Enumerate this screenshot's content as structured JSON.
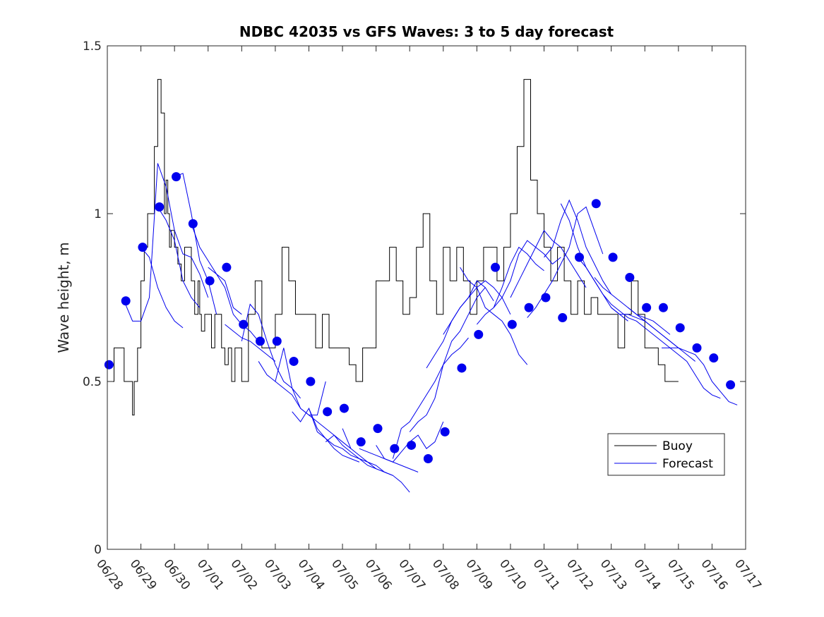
{
  "chart_data": {
    "type": "line",
    "title": "NDBC 42035 vs GFS Waves: 3 to 5 day forecast",
    "xlabel": "",
    "ylabel": "Wave height, m",
    "xlim": [
      "06/28",
      "07/17"
    ],
    "ylim": [
      0,
      1.5
    ],
    "yticks": [
      "0",
      "0.5",
      "1",
      "1.5"
    ],
    "xticks": [
      "06/28",
      "06/29",
      "06/30",
      "07/01",
      "07/02",
      "07/03",
      "07/04",
      "07/05",
      "07/06",
      "07/07",
      "07/08",
      "07/09",
      "07/10",
      "07/11",
      "07/12",
      "07/13",
      "07/14",
      "07/15",
      "07/16",
      "07/17"
    ],
    "grid": false,
    "legend_position": "lower-right",
    "colors": {
      "buoy": "#000000",
      "forecast": "#0000ee",
      "markers": "#0000ee"
    },
    "buoy": {
      "name": "Buoy",
      "days": [
        0,
        0.2,
        0.25,
        0.5,
        0.75,
        0.8,
        0.9,
        1.0,
        1.1,
        1.2,
        1.4,
        1.5,
        1.6,
        1.7,
        1.75,
        1.8,
        1.85,
        1.9,
        2.0,
        2.1,
        2.2,
        2.3,
        2.5,
        2.6,
        2.7,
        2.75,
        2.8,
        2.9,
        3.0,
        3.1,
        3.2,
        3.3,
        3.4,
        3.5,
        3.6,
        3.7,
        3.8,
        3.9,
        4.0,
        4.2,
        4.4,
        4.6,
        4.8,
        5.0,
        5.2,
        5.4,
        5.6,
        5.8,
        6.0,
        6.2,
        6.4,
        6.6,
        6.8,
        7.0,
        7.2,
        7.4,
        7.6,
        7.8,
        8.0,
        8.2,
        8.4,
        8.6,
        8.8,
        9.0,
        9.2,
        9.4,
        9.6,
        9.8,
        10.0,
        10.2,
        10.4,
        10.6,
        10.8,
        11.0,
        11.2,
        11.4,
        11.6,
        11.8,
        12.0,
        12.2,
        12.4,
        12.6,
        12.8,
        13.0,
        13.2,
        13.4,
        13.6,
        13.8,
        14.0,
        14.2,
        14.4,
        14.6,
        14.8,
        15.0,
        15.2,
        15.4,
        15.6,
        15.8,
        16.0,
        16.2,
        16.4,
        16.6,
        16.8,
        17.0
      ],
      "values": [
        0.5,
        0.6,
        0.6,
        0.5,
        0.4,
        0.5,
        0.6,
        0.8,
        0.9,
        1.0,
        1.2,
        1.4,
        1.3,
        1.0,
        1.1,
        1.0,
        0.9,
        0.95,
        0.9,
        0.85,
        0.8,
        0.9,
        0.8,
        0.7,
        0.8,
        0.7,
        0.65,
        0.7,
        0.7,
        0.6,
        0.7,
        0.7,
        0.6,
        0.55,
        0.6,
        0.5,
        0.6,
        0.6,
        0.5,
        0.7,
        0.8,
        0.6,
        0.6,
        0.7,
        0.9,
        0.8,
        0.7,
        0.7,
        0.7,
        0.6,
        0.7,
        0.6,
        0.6,
        0.6,
        0.55,
        0.5,
        0.6,
        0.6,
        0.8,
        0.8,
        0.9,
        0.8,
        0.7,
        0.75,
        0.9,
        1.0,
        0.8,
        0.7,
        0.9,
        0.8,
        0.9,
        0.8,
        0.7,
        0.8,
        0.9,
        0.9,
        0.8,
        0.9,
        1.0,
        1.2,
        1.4,
        1.1,
        1.0,
        0.9,
        0.8,
        0.9,
        0.8,
        0.7,
        0.8,
        0.7,
        0.75,
        0.7,
        0.7,
        0.7,
        0.6,
        0.7,
        0.8,
        0.7,
        0.6,
        0.6,
        0.55,
        0.5,
        0.5,
        0.5
      ],
      "note_days_from": "06/28"
    },
    "forecast_runs": [
      {
        "name": "Forecast",
        "start": 0.5,
        "values": [
          0.74,
          0.68,
          0.68,
          0.75,
          1.15,
          1.08,
          0.95,
          0.88,
          0.87,
          0.82,
          0.75
        ]
      },
      {
        "name": "",
        "start": 1.0,
        "values": [
          0.9,
          0.87,
          0.78,
          0.72,
          0.68,
          0.66
        ]
      },
      {
        "name": "",
        "start": 1.5,
        "values": [
          1.02,
          0.98,
          0.92,
          0.8,
          0.75,
          0.72
        ]
      },
      {
        "name": "",
        "start": 2.0,
        "values": [
          1.11,
          1.12,
          1.0,
          0.86,
          0.8,
          0.7
        ]
      },
      {
        "name": "",
        "start": 2.5,
        "values": [
          0.97,
          0.9,
          0.86,
          0.82,
          0.8,
          0.72,
          0.7
        ]
      },
      {
        "name": "",
        "start": 3.0,
        "values": [
          0.84,
          0.82,
          0.78,
          0.7,
          0.67,
          0.65,
          0.62
        ]
      },
      {
        "name": "",
        "start": 3.5,
        "values": [
          0.67,
          0.65,
          0.63,
          0.62,
          0.6,
          0.58,
          0.56
        ]
      },
      {
        "name": "",
        "start": 4.0,
        "values": [
          0.62,
          0.73,
          0.7,
          0.62,
          0.55,
          0.5,
          0.48,
          0.45
        ]
      },
      {
        "name": "",
        "start": 4.5,
        "values": [
          0.56,
          0.52,
          0.5,
          0.48,
          0.46,
          0.42,
          0.4,
          0.4,
          0.5
        ]
      },
      {
        "name": "",
        "start": 5.0,
        "values": [
          0.5,
          0.6,
          0.48,
          0.42,
          0.4,
          0.38,
          0.36,
          0.34,
          0.32,
          0.3
        ]
      },
      {
        "name": "",
        "start": 5.5,
        "values": [
          0.41,
          0.38,
          0.42,
          0.35,
          0.33,
          0.3,
          0.28,
          0.27,
          0.26
        ]
      },
      {
        "name": "",
        "start": 6.0,
        "values": [
          0.42,
          0.36,
          0.33,
          0.31,
          0.3,
          0.28,
          0.27,
          0.25,
          0.24
        ]
      },
      {
        "name": "",
        "start": 6.5,
        "values": [
          0.32,
          0.34,
          0.31,
          0.29,
          0.27,
          0.26,
          0.25,
          0.23,
          0.22
        ]
      },
      {
        "name": "",
        "start": 7.0,
        "values": [
          0.36,
          0.3,
          0.28,
          0.26,
          0.24,
          0.23,
          0.22,
          0.2,
          0.17
        ]
      },
      {
        "name": "",
        "start": 7.5,
        "values": [
          0.3,
          0.29,
          0.28,
          0.27,
          0.26,
          0.25,
          0.24,
          0.23
        ]
      },
      {
        "name": "",
        "start": 8.0,
        "values": [
          0.31,
          0.27,
          0.26,
          0.29,
          0.32,
          0.34,
          0.3,
          0.32,
          0.38
        ]
      },
      {
        "name": "",
        "start": 8.5,
        "values": [
          0.27,
          0.36,
          0.38,
          0.42,
          0.46,
          0.5,
          0.55,
          0.58,
          0.6,
          0.63
        ]
      },
      {
        "name": "",
        "start": 9.0,
        "values": [
          0.35,
          0.38,
          0.4,
          0.45,
          0.55,
          0.62,
          0.65,
          0.7,
          0.75,
          0.78
        ]
      },
      {
        "name": "",
        "start": 9.5,
        "values": [
          0.54,
          0.58,
          0.62,
          0.68,
          0.72,
          0.75,
          0.8,
          0.78,
          0.74
        ]
      },
      {
        "name": "",
        "start": 10.0,
        "values": [
          0.64,
          0.68,
          0.72,
          0.75,
          0.78,
          0.8,
          0.78,
          0.75,
          0.7
        ]
      },
      {
        "name": "",
        "start": 10.5,
        "values": [
          0.84,
          0.8,
          0.78,
          0.72,
          0.7,
          0.68,
          0.64,
          0.58,
          0.55
        ]
      },
      {
        "name": "",
        "start": 11.0,
        "values": [
          0.67,
          0.7,
          0.72,
          0.78,
          0.85,
          0.9,
          0.88,
          0.85,
          0.83
        ]
      },
      {
        "name": "",
        "start": 11.5,
        "values": [
          0.72,
          0.75,
          0.8,
          0.88,
          0.92,
          0.9,
          0.88,
          0.85,
          0.87
        ]
      },
      {
        "name": "",
        "start": 12.0,
        "values": [
          0.75,
          0.8,
          0.85,
          0.9,
          0.95,
          0.92,
          0.9,
          0.86,
          0.82,
          0.78
        ]
      },
      {
        "name": "",
        "start": 12.5,
        "values": [
          0.69,
          0.72,
          0.76,
          0.8,
          0.85,
          0.9,
          1.0,
          1.02,
          0.95,
          0.88
        ]
      },
      {
        "name": "",
        "start": 13.0,
        "values": [
          0.87,
          0.9,
          0.98,
          1.04,
          0.98,
          0.9,
          0.85,
          0.8,
          0.76
        ]
      },
      {
        "name": "",
        "start": 13.5,
        "values": [
          1.03,
          0.98,
          0.9,
          0.84,
          0.8,
          0.76,
          0.72,
          0.7,
          0.68
        ]
      },
      {
        "name": "",
        "start": 14.0,
        "values": [
          0.87,
          0.84,
          0.8,
          0.76,
          0.73,
          0.71,
          0.69,
          0.68,
          0.66
        ]
      },
      {
        "name": "",
        "start": 14.5,
        "values": [
          0.81,
          0.78,
          0.76,
          0.74,
          0.72,
          0.7,
          0.69,
          0.68,
          0.66,
          0.64
        ]
      },
      {
        "name": "",
        "start": 15.0,
        "values": [
          0.72,
          0.7,
          0.7,
          0.69,
          0.68,
          0.66,
          0.64,
          0.62,
          0.6
        ]
      },
      {
        "name": "",
        "start": 15.5,
        "values": [
          0.72,
          0.7,
          0.68,
          0.66,
          0.64,
          0.62,
          0.6,
          0.58,
          0.56
        ]
      },
      {
        "name": "",
        "start": 16.0,
        "values": [
          0.66,
          0.64,
          0.62,
          0.6,
          0.58,
          0.56,
          0.52,
          0.48,
          0.46,
          0.45
        ]
      },
      {
        "name": "",
        "start": 16.5,
        "values": [
          0.6,
          0.6,
          0.6,
          0.59,
          0.58,
          0.55,
          0.5,
          0.47,
          0.44,
          0.43
        ]
      }
    ],
    "markers": {
      "days": [
        0.05,
        0.55,
        1.05,
        1.55,
        2.05,
        2.55,
        3.05,
        3.55,
        4.05,
        4.55,
        5.05,
        5.55,
        6.05,
        6.55,
        7.05,
        7.55,
        8.05,
        8.55,
        9.05,
        9.55,
        10.05,
        10.55,
        11.05,
        11.55,
        12.05,
        12.55,
        13.05,
        13.55,
        14.05,
        14.55,
        15.05,
        15.55,
        16.05,
        16.55,
        17.05,
        17.55,
        18.05,
        18.55
      ],
      "values": [
        0.55,
        0.74,
        0.9,
        1.02,
        1.11,
        0.97,
        0.8,
        0.84,
        0.67,
        0.62,
        0.62,
        0.56,
        0.5,
        0.41,
        0.42,
        0.32,
        0.36,
        0.3,
        0.31,
        0.27,
        0.35,
        0.54,
        0.64,
        0.84,
        0.67,
        0.72,
        0.75,
        0.69,
        0.87,
        1.03,
        0.87,
        0.81,
        0.72,
        0.72,
        0.66,
        0.6,
        0.57,
        0.49
      ]
    }
  },
  "legend": {
    "buoy_label": "Buoy",
    "forecast_label": "Forecast"
  }
}
